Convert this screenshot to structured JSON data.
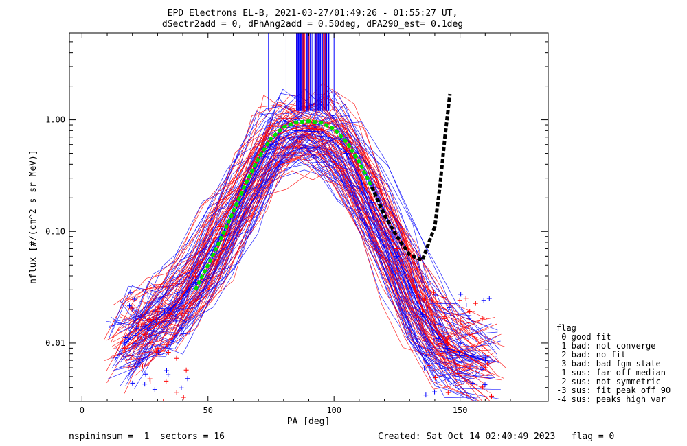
{
  "chart_data": {
    "type": "line",
    "title_line1": "EPD Electrons EL-B, 2021-03-27/01:49:26 - 01:55:27 UT,",
    "title_line2": "dSectr2add = 0, dPhAng2add = 0.50deg, dPA290_est=   0.1deg",
    "xlabel": "PA [deg]",
    "ylabel": "nflux [#/(cm^2 s sr MeV)]",
    "xlim": [
      -5,
      185
    ],
    "ylim": [
      0.003,
      6
    ],
    "yscale": "log",
    "x_ticks": [
      0,
      50,
      100,
      150
    ],
    "x_tick_labels": [
      "0",
      "50",
      "100",
      "150"
    ],
    "y_ticks": [
      0.01,
      0.1,
      1.0
    ],
    "y_tick_labels": [
      "0.01",
      "0.10",
      "1.00"
    ],
    "series": [
      {
        "color": "#0000ff",
        "marker": "+",
        "x": [
          17,
          25,
          35,
          45,
          55,
          65,
          75,
          85,
          95,
          105,
          115,
          125,
          135,
          145,
          160
        ],
        "values": [
          0.01,
          0.014,
          0.02,
          0.035,
          0.09,
          0.23,
          0.6,
          0.8,
          0.78,
          0.5,
          0.18,
          0.06,
          0.018,
          0.009,
          0.007
        ]
      },
      {
        "color": "#ff0000",
        "marker": "+",
        "x": [
          17,
          25,
          35,
          45,
          55,
          65,
          75,
          85,
          95,
          105,
          115,
          125,
          135,
          145,
          160
        ],
        "values": [
          0.009,
          0.012,
          0.018,
          0.04,
          0.11,
          0.28,
          0.7,
          0.85,
          0.82,
          0.55,
          0.2,
          0.07,
          0.02,
          0.01,
          0.006
        ]
      },
      {
        "color": "#00e000",
        "style": "dashed",
        "x": [
          45,
          50,
          55,
          60,
          65,
          70,
          75,
          80,
          85,
          90,
          95,
          100,
          105,
          110,
          115,
          120
        ],
        "values": [
          0.03,
          0.05,
          0.085,
          0.15,
          0.27,
          0.45,
          0.68,
          0.86,
          0.95,
          0.97,
          0.94,
          0.83,
          0.63,
          0.42,
          0.25,
          0.14
        ]
      },
      {
        "color": "#000000",
        "style": "dashed",
        "x": [
          115,
          120,
          125,
          130,
          135,
          140,
          142,
          144,
          146
        ],
        "values": [
          0.25,
          0.14,
          0.09,
          0.062,
          0.055,
          0.11,
          0.25,
          0.7,
          1.7
        ]
      }
    ]
  },
  "legend": {
    "title": "flag",
    "items": [
      " 0 good fit",
      " 1 bad: not converge",
      " 2 bad: no fit",
      " 3 bad: bad fgm state",
      "-1 sus: far off median",
      "-2 sus: not symmetric",
      "-3 sus: fit peak off 90",
      "-4 sus: peaks high var"
    ]
  },
  "footer": {
    "left": "nspininsum =  1  sectors = 16",
    "right": "Created: Sat Oct 14 02:40:49 2023   flag = 0"
  }
}
